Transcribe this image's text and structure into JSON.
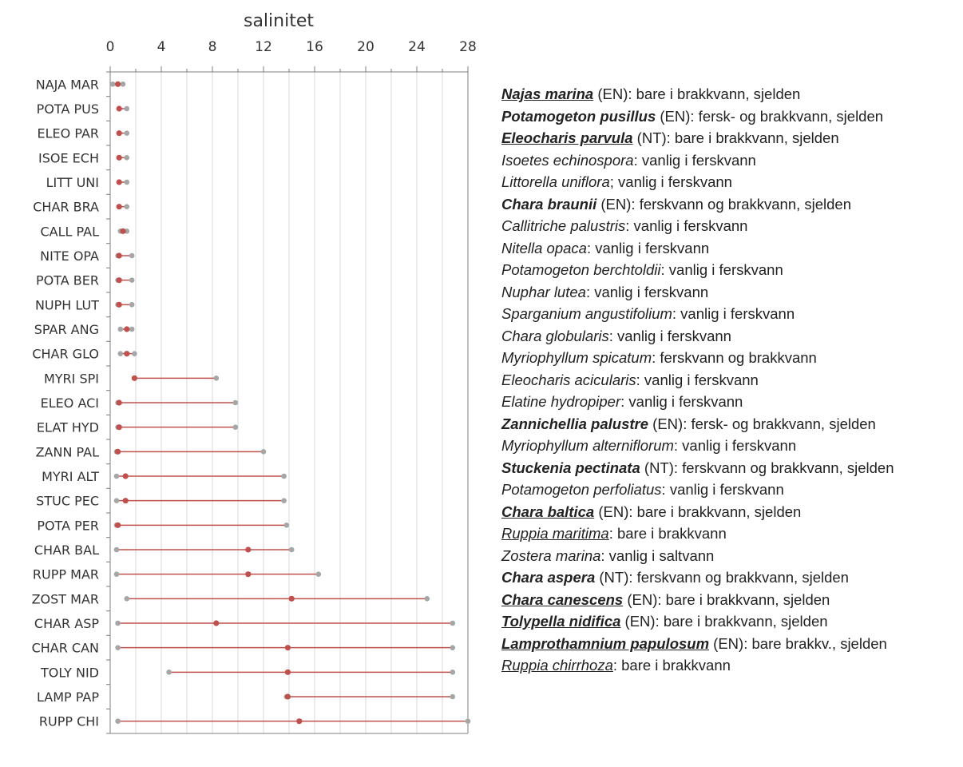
{
  "chart_data": {
    "type": "range-dot",
    "xlabel": "salinitet",
    "xlim": [
      0,
      28
    ],
    "xticks": [
      0,
      4,
      8,
      12,
      16,
      20,
      24,
      28
    ],
    "grid": true,
    "colors": {
      "range_line": "#c0504d",
      "mean_dot": "#c0504d",
      "endpoint_dot": "#a6a6a6",
      "grid": "#d9d9d9",
      "axis": "#7f7f7f"
    },
    "categories": [
      "NAJA MAR",
      "POTA PUS",
      "ELEO PAR",
      "ISOE ECH",
      "LITT UNI",
      "CHAR BRA",
      "CALL PAL",
      "NITE OPA",
      "POTA BER",
      "NUPH LUT",
      "SPAR ANG",
      "CHAR GLO",
      "MYRI SPI",
      "ELEO ACI",
      "ELAT HYD",
      "ZANN PAL",
      "MYRI ALT",
      "STUC PEC",
      "POTA PER",
      "CHAR BAL",
      "RUPP MAR",
      "ZOST MAR",
      "CHAR ASP",
      "CHAR CAN",
      "TOLY NID",
      "LAMP PAP",
      "RUPP CHI"
    ],
    "series": [
      {
        "name": "min",
        "values": [
          0.2,
          0.7,
          0.7,
          0.7,
          0.7,
          0.7,
          0.8,
          0.6,
          0.6,
          0.6,
          0.8,
          0.8,
          1.9,
          0.6,
          0.6,
          0.5,
          0.5,
          0.5,
          0.5,
          0.5,
          0.5,
          1.3,
          0.6,
          0.6,
          4.6,
          13.8,
          0.6
        ]
      },
      {
        "name": "mean",
        "values": [
          0.6,
          0.7,
          0.7,
          0.7,
          0.7,
          0.7,
          1.0,
          0.7,
          0.7,
          0.7,
          1.3,
          1.3,
          1.9,
          0.7,
          0.7,
          0.6,
          1.2,
          1.2,
          0.6,
          10.8,
          10.8,
          14.2,
          8.3,
          13.9,
          13.9,
          13.9,
          14.8
        ]
      },
      {
        "name": "max",
        "values": [
          1.0,
          1.3,
          1.3,
          1.3,
          1.3,
          1.3,
          1.3,
          1.7,
          1.7,
          1.7,
          1.7,
          1.9,
          8.3,
          9.8,
          9.8,
          12.0,
          13.6,
          13.6,
          13.8,
          14.2,
          16.3,
          24.8,
          26.8,
          26.8,
          26.8,
          26.8,
          28.0
        ]
      }
    ]
  },
  "legend": [
    {
      "name": "Najas marina",
      "rest": " (EN): bare i brakkvann, sjelden",
      "bold": true,
      "underline": true
    },
    {
      "name": "Potamogeton pusillus",
      "rest": " (EN): fersk- og brakkvann, sjelden",
      "bold": true,
      "underline": false
    },
    {
      "name": "Eleocharis parvula",
      "rest": " (NT): bare i brakkvann, sjelden",
      "bold": true,
      "underline": true
    },
    {
      "name": "Isoetes echinospora",
      "rest": ": vanlig i ferskvann",
      "bold": false,
      "underline": false
    },
    {
      "name": "Littorella uniflora",
      "rest": "; vanlig i ferskvann",
      "bold": false,
      "underline": false
    },
    {
      "name": "Chara braunii",
      "rest": " (EN): ferskvann og brakkvann, sjelden",
      "bold": true,
      "underline": false
    },
    {
      "name": "Callitriche palustris",
      "rest": ": vanlig i ferskvann",
      "bold": false,
      "underline": false
    },
    {
      "name": "Nitella opaca",
      "rest": ": vanlig i ferskvann",
      "bold": false,
      "underline": false
    },
    {
      "name": "Potamogeton berchtoldii",
      "rest": ": vanlig i ferskvann",
      "bold": false,
      "underline": false
    },
    {
      "name": "Nuphar lutea",
      "rest": ": vanlig i ferskvann",
      "bold": false,
      "underline": false
    },
    {
      "name": "Sparganium angustifolium",
      "rest": ": vanlig i ferskvann",
      "bold": false,
      "underline": false
    },
    {
      "name": "Chara globularis",
      "rest": ": vanlig i ferskvann",
      "bold": false,
      "underline": false
    },
    {
      "name": "Myriophyllum spicatum",
      "rest": ": ferskvann og brakkvann",
      "bold": false,
      "underline": false
    },
    {
      "name": "Eleocharis acicularis",
      "rest": ": vanlig i ferskvann",
      "bold": false,
      "underline": false
    },
    {
      "name": "Elatine hydropiper",
      "rest": ": vanlig i ferskvann",
      "bold": false,
      "underline": false
    },
    {
      "name": "Zannichellia palustre",
      "rest": " (EN): fersk- og brakkvann, sjelden",
      "bold": true,
      "underline": false
    },
    {
      "name": "Myriophyllum alterniflorum",
      "rest": ": vanlig i ferskvann",
      "bold": false,
      "underline": false
    },
    {
      "name": "Stuckenia pectinata",
      "rest": " (NT): ferskvann og brakkvann, sjelden",
      "bold": true,
      "underline": false
    },
    {
      "name": "Potamogeton perfoliatus",
      "rest": ": vanlig i ferskvann",
      "bold": false,
      "underline": false
    },
    {
      "name": "Chara baltica",
      "rest": " (EN): bare i brakkvann, sjelden",
      "bold": true,
      "underline": true
    },
    {
      "name": "Ruppia maritima",
      "rest": ": bare i brakkvann",
      "bold": false,
      "underline": true
    },
    {
      "name": "Zostera marina",
      "rest": ": vanlig i saltvann",
      "bold": false,
      "underline": false
    },
    {
      "name": "Chara aspera",
      "rest": " (NT): ferskvann og brakkvann, sjelden",
      "bold": true,
      "underline": false
    },
    {
      "name": "Chara canescens",
      "rest": " (EN): bare i brakkvann, sjelden",
      "bold": true,
      "underline": true
    },
    {
      "name": "Tolypella nidifica",
      "rest": " (EN): bare i brakkvann, sjelden",
      "bold": true,
      "underline": true
    },
    {
      "name": "Lamprothamnium papulosum",
      "rest": " (EN): bare brakkv., sjelden",
      "bold": true,
      "underline": true
    },
    {
      "name": "Ruppia chirrhoza",
      "rest": ": bare i brakkvann",
      "bold": false,
      "underline": true
    }
  ]
}
